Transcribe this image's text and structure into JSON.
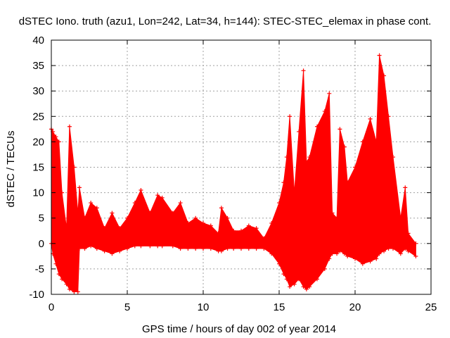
{
  "chart_data": {
    "type": "scatter",
    "title": "dSTEC Iono. truth (azu1, Lon=242, Lat=34, h=144): STEC-STEC_elemax in phase cont.",
    "xlabel": "GPS time / hours of day 002 of year 2014",
    "ylabel": "dSTEC  / TECUs",
    "xlim": [
      0,
      25
    ],
    "ylim": [
      -10,
      40
    ],
    "xticks": [
      "0",
      "5",
      "10",
      "15",
      "20",
      "25"
    ],
    "yticks": [
      "-10",
      "-5",
      "0",
      "5",
      "10",
      "15",
      "20",
      "25",
      "30",
      "35",
      "40"
    ],
    "grid": true,
    "legend": "none",
    "marker": "plus",
    "color": "#ff0000",
    "envelope": {
      "x": [
        0.0,
        0.1,
        0.3,
        0.5,
        0.7,
        1.0,
        1.2,
        1.5,
        1.75,
        1.85,
        2.2,
        2.6,
        3.0,
        3.5,
        4.0,
        4.5,
        5.0,
        5.5,
        5.9,
        6.5,
        7.0,
        7.3,
        8.0,
        8.5,
        9.0,
        9.5,
        10.0,
        10.5,
        11.0,
        11.2,
        11.6,
        12.0,
        12.5,
        13.0,
        13.5,
        14.0,
        14.5,
        15.0,
        15.3,
        15.5,
        15.7,
        16.0,
        16.3,
        16.6,
        16.8,
        17.0,
        17.5,
        18.0,
        18.3,
        18.5,
        18.8,
        19.0,
        19.3,
        19.5,
        20.0,
        20.5,
        21.0,
        21.4,
        21.6,
        21.9,
        22.2,
        22.5,
        23.0,
        23.3,
        23.5,
        24.0
      ],
      "upper": [
        22.5,
        22.0,
        21.0,
        20.0,
        10.0,
        3.0,
        23.0,
        15.0,
        6.0,
        11.0,
        5.0,
        8.0,
        7.0,
        3.0,
        6.0,
        3.0,
        5.0,
        8.0,
        10.5,
        6.0,
        9.5,
        9.0,
        6.0,
        8.0,
        4.0,
        5.0,
        4.0,
        3.5,
        2.0,
        7.0,
        5.0,
        2.5,
        2.5,
        3.5,
        3.0,
        1.0,
        4.0,
        8.0,
        12.0,
        17.0,
        25.0,
        10.0,
        22.0,
        34.0,
        16.0,
        17.0,
        23.0,
        26.0,
        29.5,
        6.0,
        5.0,
        22.5,
        19.0,
        12.0,
        15.0,
        20.0,
        24.5,
        20.0,
        37.0,
        33.0,
        25.0,
        17.0,
        5.0,
        11.0,
        2.0,
        0.0
      ],
      "lower": [
        0.0,
        -2.0,
        -4.0,
        -6.0,
        -7.0,
        -8.0,
        -9.0,
        -9.5,
        -9.5,
        -1.0,
        -1.0,
        -0.5,
        -1.0,
        -1.5,
        -2.0,
        -1.5,
        -1.0,
        -0.5,
        -0.5,
        -0.5,
        -0.5,
        -0.5,
        -0.5,
        -1.0,
        -1.0,
        -1.0,
        -1.0,
        -1.0,
        -1.5,
        -1.5,
        -1.0,
        -1.0,
        -1.0,
        -1.0,
        -1.0,
        -1.0,
        -2.0,
        -4.0,
        -6.0,
        -7.0,
        -8.5,
        -8.0,
        -7.0,
        -8.5,
        -9.0,
        -8.5,
        -7.0,
        -5.0,
        -3.0,
        -2.0,
        -2.0,
        -1.5,
        -2.0,
        -2.5,
        -3.0,
        -4.0,
        -3.5,
        -3.0,
        -2.0,
        -1.5,
        -1.0,
        -1.0,
        -2.0,
        -1.0,
        -1.5,
        -2.5
      ]
    }
  }
}
